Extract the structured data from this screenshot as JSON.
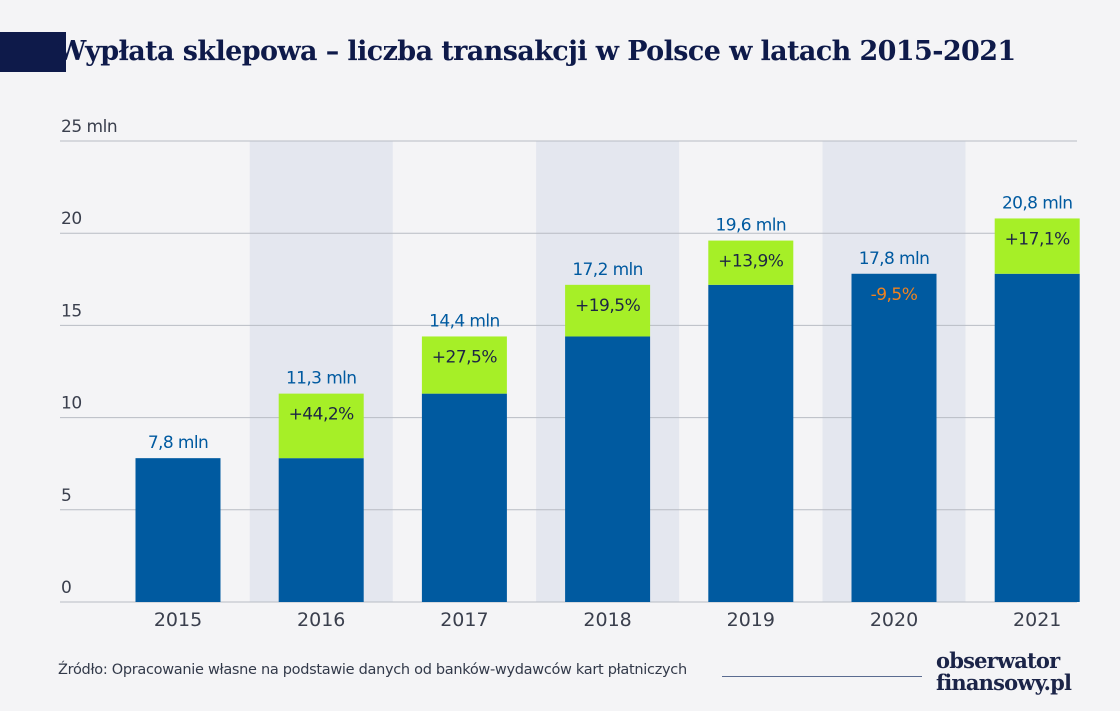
{
  "title": "Wypłata sklepowa – liczba transakcji w Polsce w latach 2015-2021",
  "source": "Źródło: Opracowanie własne na podstawie danych od banków-wydawców kart płatniczych",
  "logo": {
    "line1": "obserwator",
    "line2": "finansowy.pl"
  },
  "colors": {
    "base": "#005aa0",
    "increase": "#a6ef27",
    "value_label": "#005aa0",
    "pct_positive": "#1d2545",
    "pct_negative": "#f0821e",
    "band": "#e4e7ef",
    "grid": "#b8bcc4",
    "title": "#0e1a4a"
  },
  "chart_data": {
    "type": "bar",
    "title": "Wypłata sklepowa – liczba transakcji w Polsce w latach 2015-2021",
    "ylim": [
      0,
      25
    ],
    "yticks": [
      {
        "value": 0,
        "label": "0"
      },
      {
        "value": 5,
        "label": "5"
      },
      {
        "value": 10,
        "label": "10"
      },
      {
        "value": 15,
        "label": "15"
      },
      {
        "value": 20,
        "label": "20"
      },
      {
        "value": 25,
        "label": "25 mln"
      }
    ],
    "grid": true,
    "alternating_bands": true,
    "categories": [
      "2015",
      "2016",
      "2017",
      "2018",
      "2019",
      "2020",
      "2021"
    ],
    "values": [
      7.8,
      11.3,
      14.4,
      17.2,
      19.6,
      17.8,
      20.8
    ],
    "previous_values": [
      null,
      7.8,
      11.3,
      14.4,
      17.2,
      19.6,
      17.8
    ],
    "value_labels": [
      "7,8 mln",
      "11,3 mln",
      "14,4 mln",
      "17,2 mln",
      "19,6 mln",
      "17,8 mln",
      "20,8 mln"
    ],
    "change_labels": [
      "",
      "+44,2%",
      "+27,5%",
      "+19,5%",
      "+13,9%",
      "-9,5%",
      "+17,1%"
    ]
  }
}
